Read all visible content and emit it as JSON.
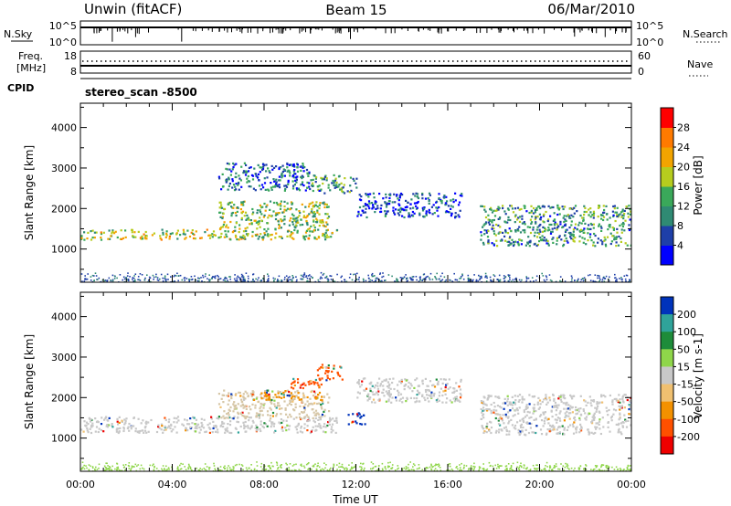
{
  "header": {
    "station": "Unwin (fitACF)",
    "beam": "Beam 15",
    "date": "06/Mar/2010"
  },
  "aux_panels": {
    "nsky": {
      "label": "N.Sky",
      "ticks": [
        "10^5",
        "10^0"
      ]
    },
    "nsearch": {
      "label": "N.Search"
    },
    "freq": {
      "label_top": "Freq.",
      "label_unit": "[MHz]",
      "ticks": [
        "18",
        "8"
      ]
    },
    "nave": {
      "label": "Nave",
      "ticks": [
        "60",
        "0"
      ]
    },
    "cpid": {
      "label": "CPID",
      "value": "stereo_scan -8500"
    }
  },
  "chart_data": [
    {
      "type": "heatmap",
      "panel": "power",
      "xlabel": "Time UT",
      "ylabel": "Slant Range [km]",
      "xlim": [
        0,
        24
      ],
      "ylim": [
        180,
        4600
      ],
      "x_ticks": [
        "00:00",
        "04:00",
        "08:00",
        "12:00",
        "16:00",
        "20:00",
        "00:00"
      ],
      "y_ticks": [
        "1000",
        "2000",
        "3000",
        "4000"
      ],
      "colorbar": {
        "label": "Power [dB]",
        "ticks": [
          "4",
          "8",
          "12",
          "16",
          "20",
          "24",
          "28"
        ],
        "colors": [
          "#0000ff",
          "#1e3fa8",
          "#2f8a73",
          "#3aa85a",
          "#b6cc1e",
          "#f2a400",
          "#ff7a00",
          "#ff0000"
        ]
      },
      "echo_regions": [
        {
          "t0": 0.0,
          "t1": 11.2,
          "r0": 1250,
          "r1": 1500,
          "level": 0.55
        },
        {
          "t0": 6.0,
          "t1": 10.8,
          "r0": 1500,
          "r1": 2200,
          "level": 0.5
        },
        {
          "t0": 6.0,
          "t1": 10.0,
          "r0": 2450,
          "r1": 3150,
          "level": 0.25
        },
        {
          "t0": 10.0,
          "t1": 12.0,
          "r0": 2400,
          "r1": 2850,
          "level": 0.35
        },
        {
          "t0": 12.0,
          "t1": 16.6,
          "r0": 1800,
          "r1": 2400,
          "level": 0.15
        },
        {
          "t0": 17.4,
          "t1": 24.0,
          "r0": 1100,
          "r1": 2100,
          "level": 0.35
        }
      ],
      "ground_scatter": {
        "t0": 0.0,
        "t1": 24.0,
        "r0": 180,
        "r1": 430
      }
    },
    {
      "type": "heatmap",
      "panel": "velocity",
      "xlabel": "Time UT",
      "ylabel": "Slant Range [km]",
      "xlim": [
        0,
        24
      ],
      "ylim": [
        180,
        4600
      ],
      "x_ticks": [
        "00:00",
        "04:00",
        "08:00",
        "12:00",
        "16:00",
        "20:00",
        "00:00"
      ],
      "y_ticks": [
        "1000",
        "2000",
        "3000",
        "4000"
      ],
      "colorbar": {
        "label": "Velocity [m s-1]",
        "ticks": [
          "200",
          "100",
          "50",
          "15",
          "-15",
          "-50",
          "-100",
          "-200"
        ],
        "colors": [
          "#0033bb",
          "#2fa39a",
          "#1e8c3a",
          "#8fd64a",
          "#c8c8c8",
          "#f0c070",
          "#f39100",
          "#ff5000",
          "#ee0000"
        ]
      },
      "echo_regions": [
        {
          "t0": 0.0,
          "t1": 11.2,
          "r0": 1150,
          "r1": 1550,
          "color": "#c8c8c8"
        },
        {
          "t0": 6.0,
          "t1": 10.8,
          "r0": 1500,
          "r1": 2200,
          "color": "#d6c6a6"
        },
        {
          "t0": 7.5,
          "t1": 10.5,
          "r0": 1950,
          "r1": 2150,
          "color": "#f39100"
        },
        {
          "t0": 9.0,
          "t1": 10.5,
          "r0": 2250,
          "r1": 2500,
          "color": "#ff5000"
        },
        {
          "t0": 10.3,
          "t1": 11.4,
          "r0": 2450,
          "r1": 2850,
          "color": "#ff5000"
        },
        {
          "t0": 11.6,
          "t1": 12.4,
          "r0": 1350,
          "r1": 1650,
          "color": "#0033bb"
        },
        {
          "t0": 12.0,
          "t1": 16.6,
          "r0": 1900,
          "r1": 2500,
          "color": "#c8c8c8"
        },
        {
          "t0": 17.4,
          "t1": 24.0,
          "r0": 1100,
          "r1": 2100,
          "color": "#c8c8c8"
        }
      ],
      "ground_scatter": {
        "t0": 0.0,
        "t1": 24.0,
        "r0": 180,
        "r1": 430,
        "color": "#8fd64a"
      }
    }
  ]
}
